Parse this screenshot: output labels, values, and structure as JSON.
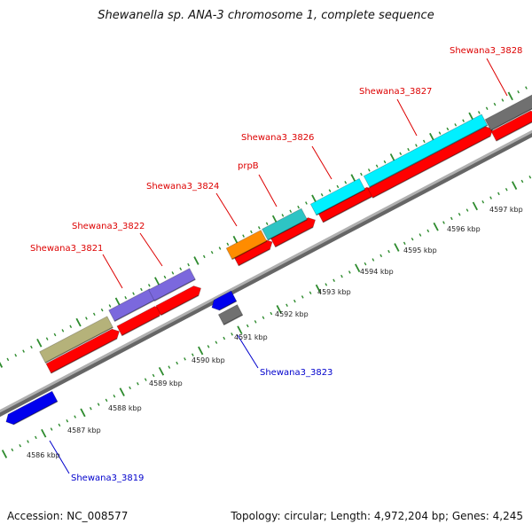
{
  "title": "Shewanella sp. ANA-3 chromosome 1, complete sequence",
  "footer": {
    "accession": "Accession: NC_008577",
    "topology": "Topology: circular; Length: 4,972,204 bp; Genes: 4,245"
  },
  "colors": {
    "label_top": "#dd0000",
    "label_bottom": "#0000cc",
    "tick": "#2e8b2e",
    "backbone": "#999999"
  },
  "scale_ticks": [
    {
      "label": "4586 kbp"
    },
    {
      "label": "4587 kbp"
    },
    {
      "label": "4588 kbp"
    },
    {
      "label": "4589 kbp"
    },
    {
      "label": "4590 kbp"
    },
    {
      "label": "4591 kbp"
    },
    {
      "label": "4592 kbp"
    },
    {
      "label": "4593 kbp"
    },
    {
      "label": "4594 kbp"
    },
    {
      "label": "4595 kbp"
    },
    {
      "label": "4596 kbp"
    },
    {
      "label": "4597 kbp"
    }
  ],
  "gene_labels": [
    {
      "name": "Shewana3_3819",
      "strand": "bottom"
    },
    {
      "name": "Shewana3_3821",
      "strand": "top"
    },
    {
      "name": "Shewana3_3822",
      "strand": "top"
    },
    {
      "name": "Shewana3_3823",
      "strand": "bottom"
    },
    {
      "name": "Shewana3_3824",
      "strand": "top"
    },
    {
      "name": "prpB",
      "strand": "top"
    },
    {
      "name": "Shewana3_3826",
      "strand": "top"
    },
    {
      "name": "Shewana3_3827",
      "strand": "top"
    },
    {
      "name": "Shewana3_3828",
      "strand": "top"
    }
  ],
  "features": [
    {
      "name": "cds-3821",
      "color": "#ff0000"
    },
    {
      "name": "cds-3822",
      "color": "#ff0000"
    },
    {
      "name": "cds-3822b",
      "color": "#ff0000"
    },
    {
      "name": "cds-3824",
      "color": "#ff0000"
    },
    {
      "name": "cds-prpB",
      "color": "#ff0000"
    },
    {
      "name": "cds-3826",
      "color": "#ff0000"
    },
    {
      "name": "cds-3827",
      "color": "#ff0000"
    },
    {
      "name": "gene-3821",
      "color": "#b5b27a"
    },
    {
      "name": "gene-3822a",
      "color": "#7b68dd"
    },
    {
      "name": "gene-3822b",
      "color": "#7b68dd"
    },
    {
      "name": "gene-3824",
      "color": "#ff8c00"
    },
    {
      "name": "gene-prpB",
      "color": "#2ec4c4"
    },
    {
      "name": "gene-3826",
      "color": "#00f0ff"
    },
    {
      "name": "gene-3827",
      "color": "#00f0ff"
    },
    {
      "name": "gene-3828",
      "color": "#707070"
    },
    {
      "name": "gene-3819",
      "color": "#0000ee"
    },
    {
      "name": "gene-3823",
      "color": "#0000ee"
    },
    {
      "name": "gene-3823b",
      "color": "#707070"
    }
  ]
}
